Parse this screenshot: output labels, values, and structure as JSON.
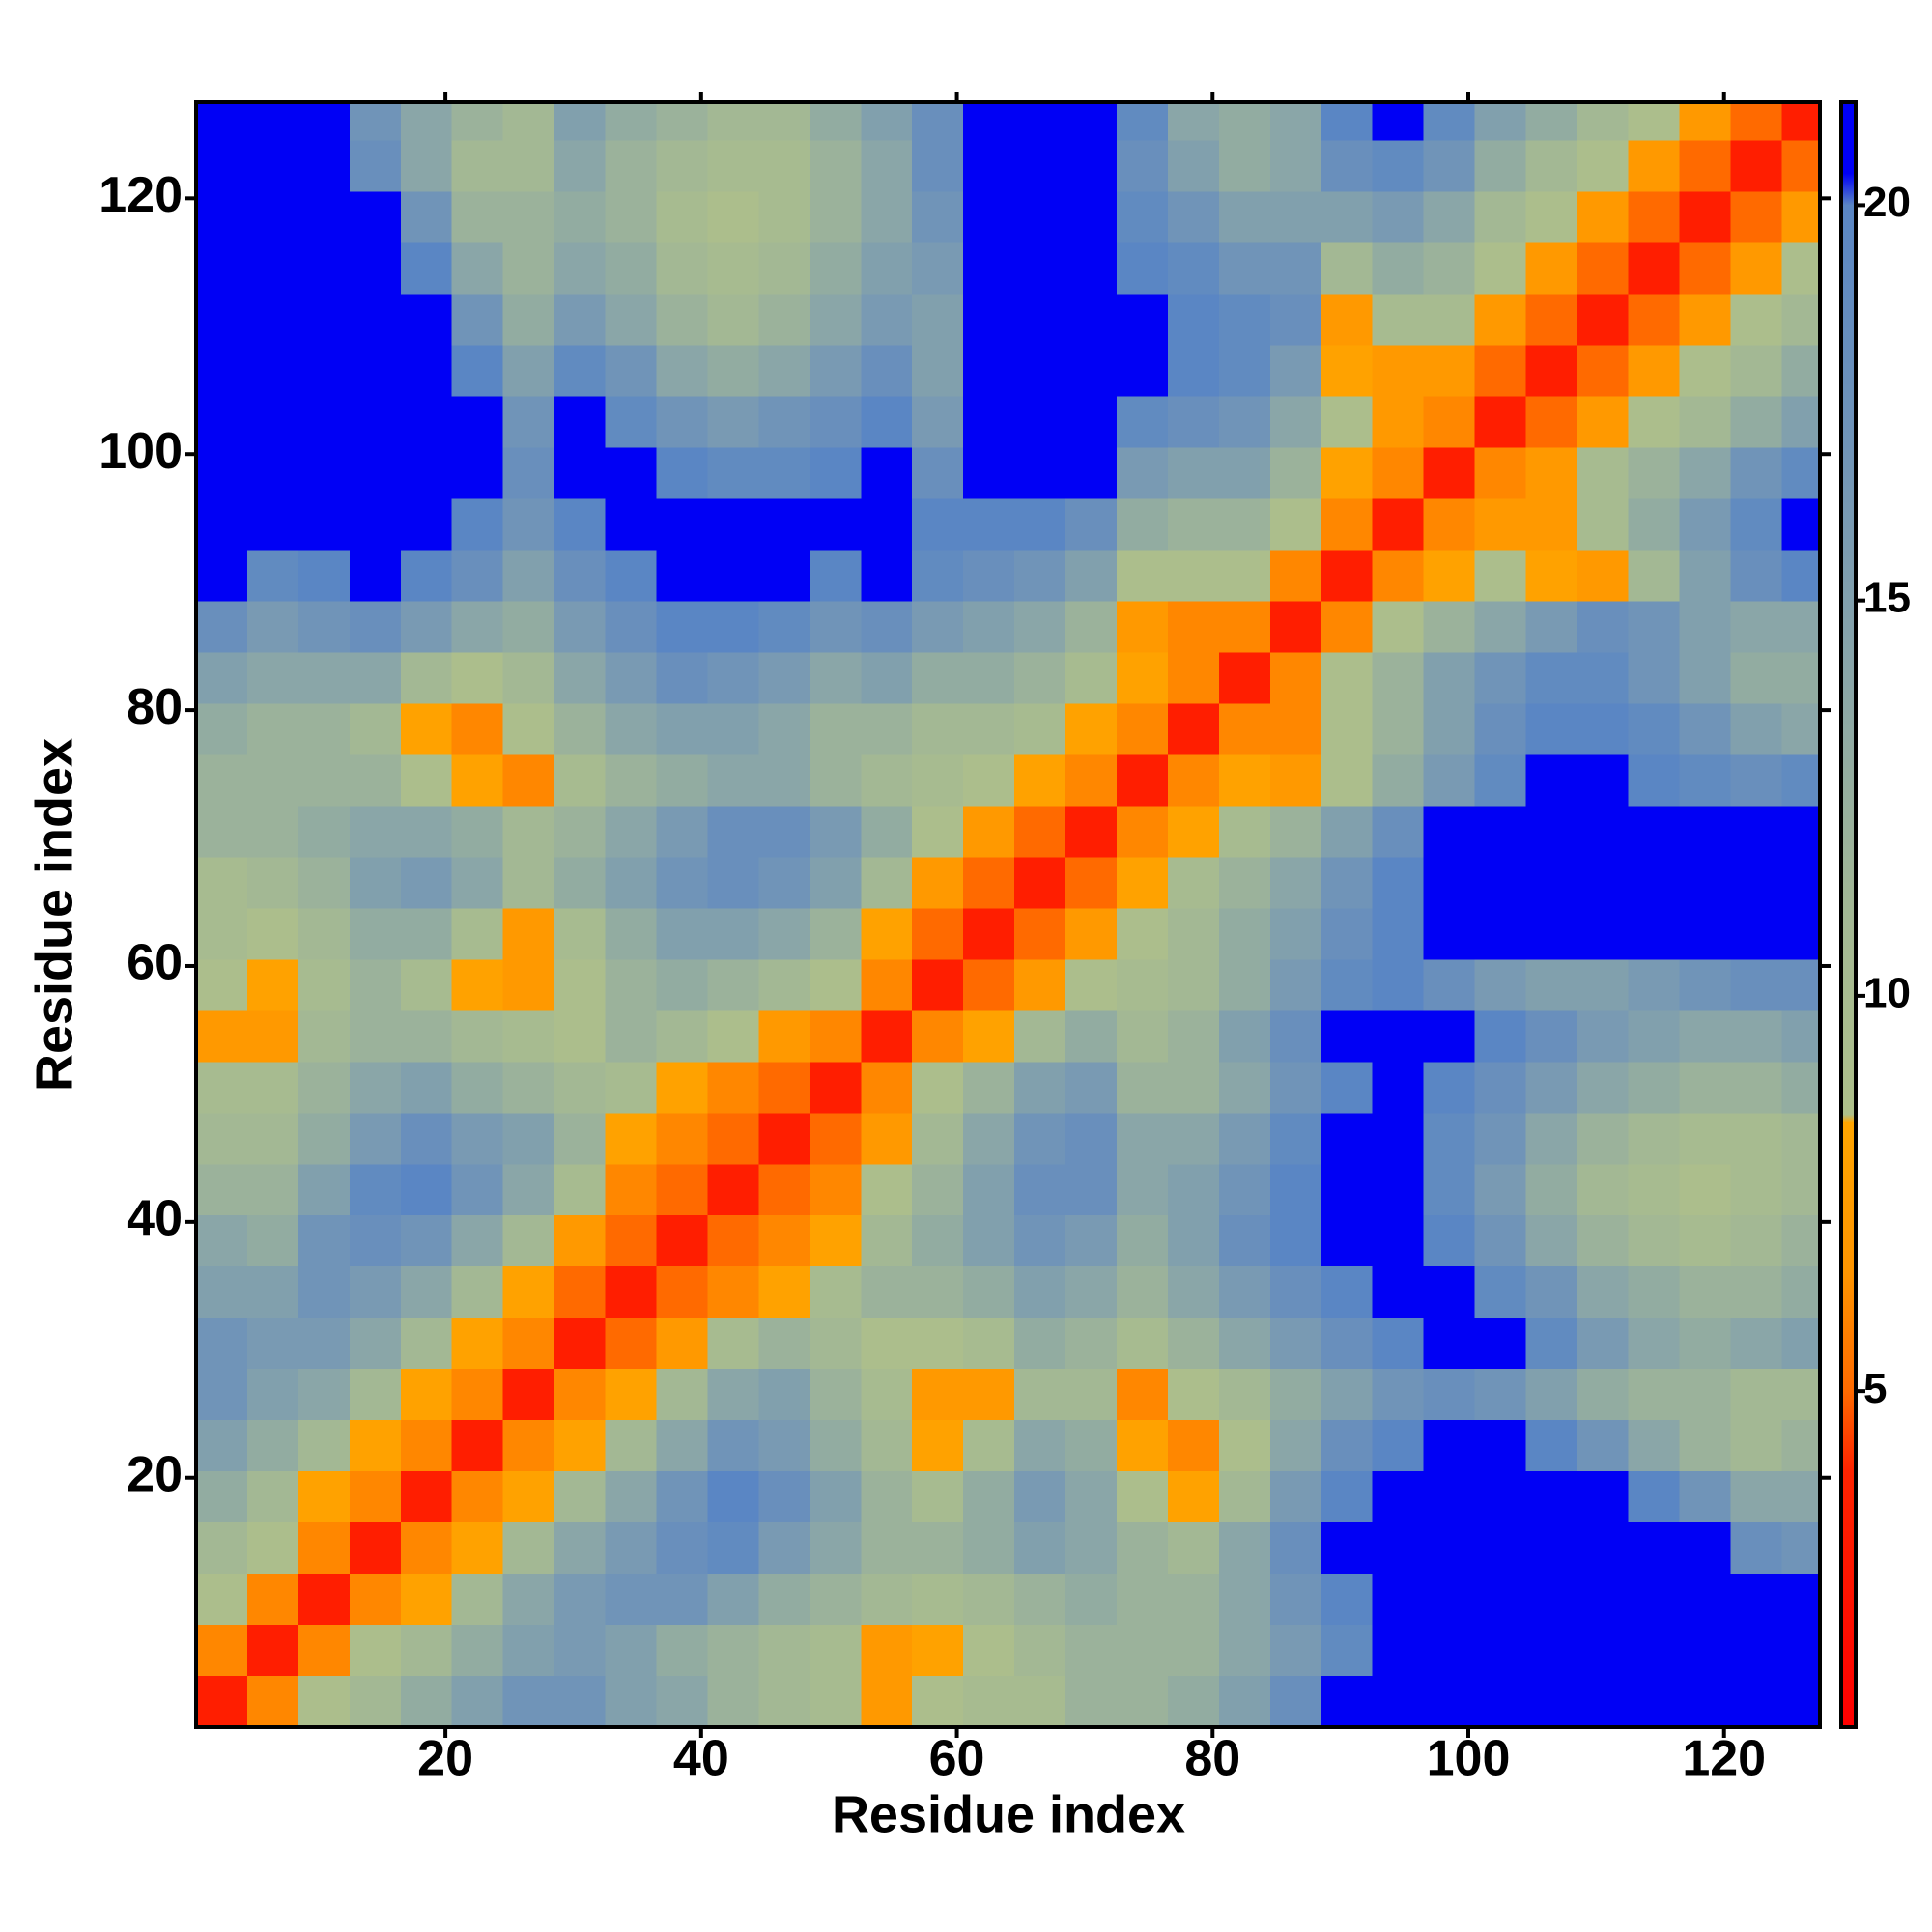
{
  "chart_data": {
    "type": "heatmap",
    "xlabel": "Residue index",
    "ylabel": "Residue index",
    "xlim": [
      0.5,
      127.5
    ],
    "ylim": [
      0.5,
      127.5
    ],
    "xticks": [
      20,
      40,
      60,
      80,
      100,
      120
    ],
    "yticks": [
      20,
      40,
      60,
      80,
      100,
      120
    ],
    "zlim": [
      0.75,
      21.3
    ],
    "zticks": [
      5,
      10,
      15,
      20
    ],
    "colorscale": [
      [
        0.75,
        "#ff0000"
      ],
      [
        4,
        "#ff2400"
      ],
      [
        5,
        "#ff6a00"
      ],
      [
        6.5,
        "#ff9500"
      ],
      [
        8.4,
        "#ffa500"
      ],
      [
        8.5,
        "#aec08a"
      ],
      [
        11,
        "#a3b894"
      ],
      [
        14,
        "#8aa6a8"
      ],
      [
        17,
        "#7094b8"
      ],
      [
        20,
        "#5a86c4"
      ],
      [
        20.4,
        "#0000f5"
      ],
      [
        21.3,
        "#0000f5"
      ]
    ],
    "x_bins": [
      0.5,
      4.5,
      8.5,
      12.5,
      16.5,
      20.5,
      24.5,
      28.5,
      32.5,
      36.5,
      40.5,
      44.5,
      48.5,
      52.5,
      56.5,
      60.5,
      64.5,
      68.5,
      72.5,
      76.5,
      80.5,
      84.5,
      88.5,
      92.5,
      96.5,
      100.5,
      104.5,
      108.5,
      112.5,
      116.5,
      120.5,
      124.5,
      127.5
    ],
    "y_bins": [
      0.5,
      4.5,
      8.5,
      12.5,
      16.5,
      20.5,
      24.5,
      28.5,
      32.5,
      36.5,
      40.5,
      44.5,
      48.5,
      52.5,
      56.5,
      60.5,
      64.5,
      68.5,
      72.5,
      76.5,
      80.5,
      84.5,
      88.5,
      92.5,
      96.5,
      100.5,
      104.5,
      108.5,
      112.5,
      116.5,
      120.5,
      124.5,
      127.5
    ],
    "z": [
      [
        3.5,
        6,
        9,
        11,
        13,
        15,
        17,
        17,
        15,
        14,
        12,
        11,
        10,
        7,
        9,
        10,
        10,
        12,
        12,
        13,
        15,
        18,
        21,
        21,
        21,
        21,
        21,
        21,
        21,
        21,
        21,
        21
      ],
      [
        6,
        3.5,
        6,
        9,
        11,
        13,
        15,
        16,
        15,
        13,
        12,
        11,
        10,
        7,
        8,
        9,
        11,
        12,
        12,
        12,
        14,
        16,
        19,
        21,
        21,
        21,
        21,
        21,
        21,
        21,
        21,
        21
      ],
      [
        9,
        6,
        3.5,
        6,
        8,
        11,
        14,
        16,
        17,
        17,
        15,
        13,
        12,
        11,
        10,
        11,
        12,
        13,
        12,
        12,
        14,
        17,
        20,
        21,
        21,
        21,
        21,
        21,
        21,
        21,
        21,
        21
      ],
      [
        11,
        9,
        6,
        3.5,
        6,
        8,
        11,
        14,
        16,
        18,
        19,
        16,
        14,
        12,
        12,
        13,
        15,
        14,
        12,
        11,
        14,
        18,
        21,
        21,
        21,
        21,
        21,
        21,
        21,
        21,
        18,
        17
      ],
      [
        13,
        11,
        8,
        6,
        3.5,
        6,
        8,
        11,
        14,
        17,
        20,
        18,
        15,
        12,
        10,
        13,
        16,
        14,
        9,
        8,
        11,
        16,
        20,
        21,
        21,
        21,
        21,
        21,
        20,
        17,
        14,
        14
      ],
      [
        15,
        13,
        11,
        8,
        6,
        3.5,
        6,
        8,
        11,
        14,
        17,
        16,
        13,
        11,
        8,
        10,
        14,
        13,
        8,
        6,
        9,
        14,
        18,
        20,
        21,
        21,
        20,
        17,
        14,
        12,
        11,
        12
      ],
      [
        17,
        15,
        14,
        11,
        8,
        6,
        3.5,
        6,
        8,
        11,
        14,
        15,
        12,
        10,
        7,
        7,
        11,
        11,
        6,
        9,
        11,
        13,
        15,
        17,
        18,
        17,
        15,
        13,
        12,
        12,
        11,
        11
      ],
      [
        17,
        16,
        16,
        14,
        11,
        8,
        6,
        3.5,
        5,
        7,
        10,
        12,
        11,
        9,
        9,
        10,
        13,
        12,
        10,
        12,
        14,
        16,
        18,
        20,
        21,
        21,
        19,
        16,
        14,
        13,
        14,
        15
      ],
      [
        15,
        15,
        17,
        16,
        14,
        11,
        8,
        5,
        3.5,
        5,
        6,
        8,
        10,
        12,
        12,
        13,
        15,
        14,
        12,
        14,
        16,
        18,
        20,
        21,
        21,
        19,
        17,
        14,
        13,
        12,
        12,
        13
      ],
      [
        14,
        13,
        17,
        18,
        17,
        14,
        11,
        7,
        5,
        3.5,
        5,
        6,
        8,
        11,
        13,
        15,
        17,
        16,
        13,
        15,
        18,
        20,
        21,
        21,
        20,
        17,
        14,
        12,
        11,
        10,
        11,
        12
      ],
      [
        12,
        12,
        15,
        19,
        20,
        17,
        14,
        10,
        6,
        5,
        3.5,
        5,
        6,
        9,
        12,
        15,
        18,
        18,
        14,
        15,
        17,
        20,
        21,
        21,
        19,
        16,
        13,
        11,
        10,
        9,
        10,
        11
      ],
      [
        11,
        11,
        13,
        16,
        18,
        16,
        15,
        12,
        8,
        6,
        5,
        3.5,
        5,
        7,
        11,
        14,
        17,
        18,
        14,
        14,
        16,
        19,
        21,
        21,
        19,
        17,
        14,
        12,
        11,
        10,
        10,
        11
      ],
      [
        10,
        10,
        12,
        14,
        15,
        13,
        12,
        11,
        10,
        8,
        6,
        5,
        3.5,
        6,
        9,
        12,
        15,
        16,
        12,
        12,
        14,
        17,
        20,
        21,
        20,
        18,
        16,
        14,
        13,
        12,
        12,
        13
      ],
      [
        7,
        7,
        11,
        12,
        12,
        11,
        10,
        9,
        12,
        11,
        9,
        7,
        6,
        3.5,
        6,
        8,
        11,
        13,
        11,
        12,
        15,
        18,
        21,
        21,
        21,
        20,
        18,
        16,
        15,
        14,
        14,
        15
      ],
      [
        9,
        8,
        10,
        12,
        10,
        8,
        7,
        9,
        12,
        13,
        12,
        11,
        9,
        6,
        3.5,
        5,
        7,
        9,
        10,
        11,
        13,
        16,
        19,
        20,
        18,
        16,
        15,
        15,
        16,
        17,
        18,
        18
      ],
      [
        10,
        9,
        11,
        13,
        13,
        10,
        7,
        10,
        13,
        15,
        15,
        14,
        12,
        8,
        5,
        3.5,
        5,
        7,
        9,
        11,
        13,
        15,
        18,
        20,
        21,
        21,
        21,
        21,
        21,
        21,
        21,
        21
      ],
      [
        10,
        11,
        12,
        15,
        16,
        14,
        11,
        13,
        15,
        17,
        18,
        17,
        15,
        11,
        7,
        5,
        3.5,
        5,
        8,
        10,
        12,
        14,
        17,
        20,
        21,
        21,
        21,
        21,
        21,
        21,
        21,
        21
      ],
      [
        12,
        12,
        13,
        14,
        14,
        13,
        11,
        12,
        14,
        16,
        18,
        18,
        16,
        13,
        9,
        7,
        5,
        3.5,
        6,
        8,
        10,
        12,
        15,
        18,
        21,
        21,
        21,
        21,
        21,
        21,
        21,
        21
      ],
      [
        12,
        12,
        12,
        12,
        9,
        8,
        6,
        10,
        12,
        13,
        14,
        14,
        12,
        11,
        10,
        9,
        8,
        6,
        3.5,
        6,
        8,
        7,
        9,
        13,
        16,
        19,
        21,
        21,
        20,
        19,
        18,
        19
      ],
      [
        13,
        12,
        12,
        11,
        8,
        6,
        9,
        12,
        14,
        15,
        15,
        14,
        12,
        12,
        11,
        11,
        10,
        8,
        6,
        3.5,
        6,
        6,
        9,
        12,
        15,
        18,
        20,
        20,
        19,
        17,
        15,
        14
      ],
      [
        15,
        14,
        14,
        14,
        11,
        9,
        11,
        14,
        16,
        18,
        17,
        16,
        14,
        15,
        13,
        13,
        12,
        10,
        8,
        6,
        3.5,
        6,
        9,
        12,
        15,
        17,
        19,
        19,
        17,
        15,
        13,
        13
      ],
      [
        18,
        16,
        17,
        18,
        16,
        14,
        13,
        16,
        18,
        20,
        20,
        19,
        17,
        18,
        16,
        15,
        14,
        12,
        7,
        6,
        6,
        3.5,
        6,
        9,
        12,
        14,
        16,
        18,
        17,
        15,
        14,
        14
      ],
      [
        21,
        19,
        20,
        21,
        20,
        18,
        15,
        18,
        20,
        21,
        21,
        21,
        20,
        21,
        19,
        18,
        17,
        15,
        9,
        9,
        9,
        6,
        3.5,
        6,
        8,
        9,
        8,
        7,
        11,
        15,
        18,
        20
      ],
      [
        21,
        21,
        21,
        21,
        21,
        20,
        17,
        20,
        21,
        21,
        21,
        21,
        21,
        21,
        20,
        20,
        20,
        18,
        13,
        12,
        12,
        9,
        6,
        3.5,
        6,
        7,
        7,
        10,
        13,
        16,
        19,
        21
      ],
      [
        21,
        21,
        21,
        21,
        21,
        21,
        18,
        21,
        21,
        20,
        19,
        19,
        20,
        21,
        18,
        21,
        21,
        21,
        16,
        15,
        15,
        12,
        8,
        6,
        3.5,
        6,
        7,
        10,
        12,
        14,
        17,
        19
      ],
      [
        21,
        21,
        21,
        21,
        21,
        21,
        17,
        21,
        19,
        17,
        16,
        17,
        18,
        20,
        16,
        21,
        21,
        21,
        19,
        18,
        17,
        14,
        9,
        7,
        6,
        3.5,
        5,
        7,
        9,
        11,
        13,
        15
      ],
      [
        21,
        21,
        21,
        21,
        21,
        20,
        15,
        19,
        17,
        14,
        13,
        14,
        16,
        18,
        15,
        21,
        21,
        21,
        21,
        20,
        19,
        16,
        8,
        7,
        7,
        5,
        3.5,
        5,
        7,
        9,
        11,
        13
      ],
      [
        21,
        21,
        21,
        21,
        21,
        17,
        13,
        16,
        14,
        12,
        11,
        12,
        14,
        16,
        15,
        21,
        21,
        21,
        21,
        20,
        19,
        18,
        7,
        10,
        10,
        7,
        5,
        3.5,
        5,
        7,
        9,
        11
      ],
      [
        21,
        21,
        21,
        21,
        20,
        14,
        12,
        14,
        13,
        11,
        10,
        11,
        13,
        15,
        16,
        21,
        21,
        21,
        20,
        19,
        17,
        17,
        11,
        13,
        12,
        9,
        7,
        5,
        3.5,
        5,
        7,
        9
      ],
      [
        21,
        21,
        21,
        21,
        17,
        12,
        12,
        13,
        12,
        10,
        9,
        10,
        12,
        14,
        17,
        21,
        21,
        21,
        19,
        17,
        15,
        15,
        15,
        16,
        14,
        11,
        9,
        7,
        5,
        3.5,
        5,
        7
      ],
      [
        21,
        21,
        21,
        18,
        14,
        11,
        11,
        14,
        12,
        11,
        10,
        10,
        12,
        14,
        18,
        21,
        21,
        21,
        18,
        15,
        13,
        14,
        18,
        19,
        17,
        13,
        11,
        9,
        7,
        5,
        3.5,
        5
      ],
      [
        21,
        21,
        21,
        17,
        14,
        12,
        11,
        15,
        13,
        12,
        11,
        11,
        13,
        15,
        18,
        21,
        21,
        21,
        19,
        14,
        13,
        14,
        20,
        21,
        19,
        15,
        13,
        11,
        9,
        7,
        5,
        3.5
      ]
    ]
  }
}
